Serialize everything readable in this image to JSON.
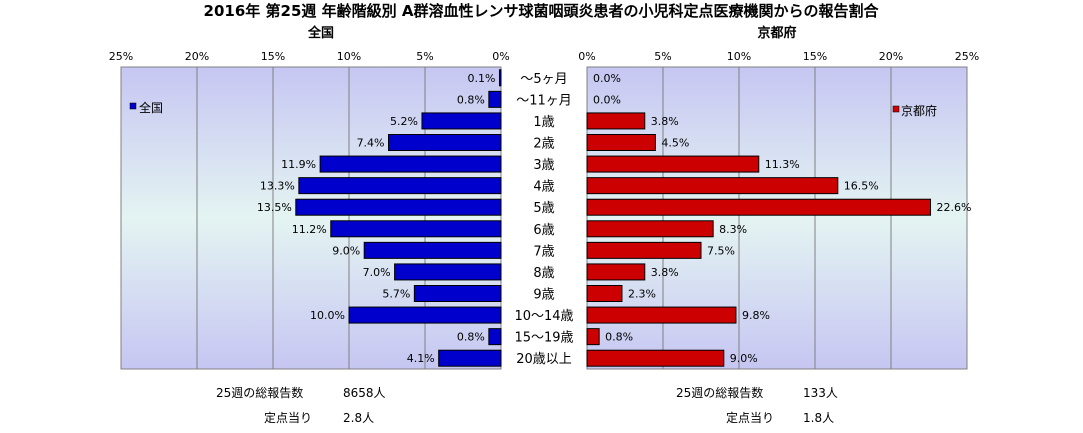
{
  "chart_data": {
    "type": "bar",
    "title": "2016年 第25週 年齢階級別 A群溶血性レンサ球菌咽頭炎患者の小児科定点医療機関からの報告割合",
    "categories": [
      "～5ヶ月",
      "～11ヶ月",
      "1歳",
      "2歳",
      "3歳",
      "4歳",
      "5歳",
      "6歳",
      "7歳",
      "8歳",
      "9歳",
      "10～14歳",
      "15～19歳",
      "20歳以上"
    ],
    "series": [
      {
        "name": "全国",
        "color": "#0000cc",
        "values": [
          0.1,
          0.8,
          5.2,
          7.4,
          11.9,
          13.3,
          13.5,
          11.2,
          9.0,
          7.0,
          5.7,
          10.0,
          0.8,
          4.1
        ],
        "labels": [
          "0.1%",
          "0.8%",
          "5.2%",
          "7.4%",
          "11.9%",
          "13.3%",
          "13.5%",
          "11.2%",
          "9.0%",
          "7.0%",
          "5.7%",
          "10.0%",
          "0.8%",
          "4.1%"
        ]
      },
      {
        "name": "京都府",
        "color": "#cc0000",
        "values": [
          0.0,
          0.0,
          3.8,
          4.5,
          11.3,
          16.5,
          22.6,
          8.3,
          7.5,
          3.8,
          2.3,
          9.8,
          0.8,
          9.0
        ],
        "labels": [
          "0.0%",
          "0.0%",
          "3.8%",
          "4.5%",
          "11.3%",
          "16.5%",
          "22.6%",
          "8.3%",
          "7.5%",
          "3.8%",
          "2.3%",
          "9.8%",
          "0.8%",
          "9.0%"
        ]
      }
    ],
    "panels": [
      {
        "subtitle": "全国",
        "legend": "全国"
      },
      {
        "subtitle": "京都府",
        "legend": "京都府"
      }
    ],
    "xlim": [
      0,
      25
    ],
    "xticks": [
      "0%",
      "5%",
      "10%",
      "15%",
      "20%",
      "25%"
    ],
    "plot_background": "#c8c8f4",
    "grid": true
  },
  "stats": {
    "national": {
      "total_label": "25週の総報告数",
      "total_value": "8658人",
      "per_label": "定点当り",
      "per_value": "2.8人"
    },
    "kyoto": {
      "total_label": "25週の総報告数",
      "total_value": "133人",
      "per_label": "定点当り",
      "per_value": "1.8人"
    }
  }
}
